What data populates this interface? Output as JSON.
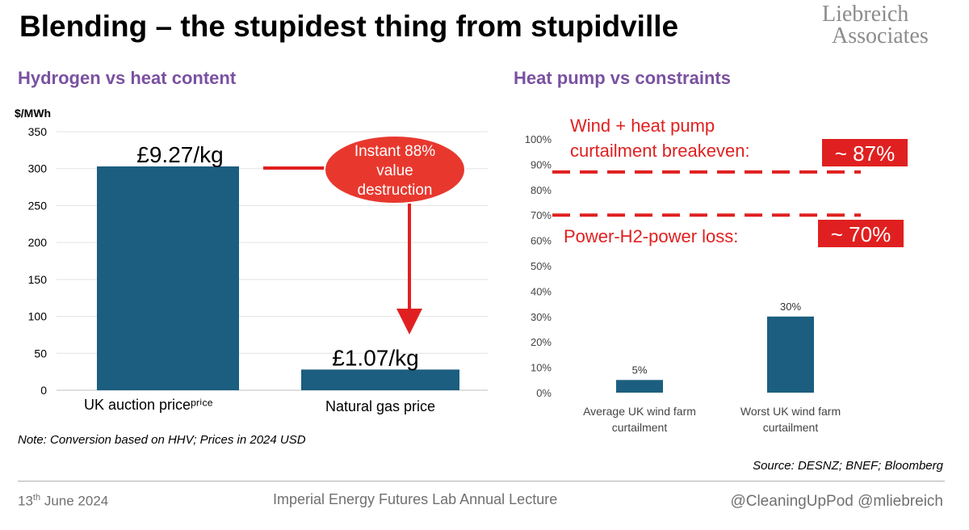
{
  "title": "Blending – the stupidest thing from stupidville",
  "logo": {
    "line1": "Liebreich",
    "line2": "Associates"
  },
  "left_subtitle": "Hydrogen vs heat content",
  "right_subtitle": "Heat pump vs constraints",
  "colors": {
    "bar": "#1b5e80",
    "accent_red": "#e02020",
    "subtitle_purple": "#7a51a1",
    "callout_fill": "#e8382e"
  },
  "chart_data": [
    {
      "type": "bar",
      "ylabel": "$/MWh",
      "ylim": [
        0,
        350
      ],
      "yticks": [
        "0",
        "50",
        "100",
        "150",
        "200",
        "250",
        "300",
        "350"
      ],
      "categories": [
        "UK auction price",
        "Natural gas price"
      ],
      "category_labels": [
        "UK auction priceᵖʳⁱᶜᵉ",
        "Natural gas price"
      ],
      "values": [
        303,
        28
      ],
      "data_labels": [
        "£9.27/kg",
        "£1.07/kg"
      ],
      "grid": true,
      "annotation": {
        "lines": [
          "Instant 88%",
          "value",
          "destruction"
        ]
      }
    },
    {
      "type": "bar",
      "ylim": [
        0,
        100
      ],
      "yticks": [
        "0%",
        "10%",
        "20%",
        "30%",
        "40%",
        "50%",
        "60%",
        "70%",
        "80%",
        "90%",
        "100%"
      ],
      "categories": [
        "Average UK wind farm curtailment",
        "Worst UK wind farm curtailment"
      ],
      "category_lines": [
        [
          "Average UK wind farm",
          "curtailment"
        ],
        [
          "Worst UK wind farm",
          "curtailment"
        ]
      ],
      "values": [
        5,
        30
      ],
      "data_labels": [
        "5%",
        "30%"
      ],
      "grid": false,
      "thresholds": [
        {
          "value": 87,
          "label_lines": [
            "Wind + heat pump",
            "curtailment breakeven:"
          ],
          "badge": "~ 87%"
        },
        {
          "value": 70,
          "label_lines": [
            "Power-H2-power loss:"
          ],
          "badge": "~ 70%"
        }
      ]
    }
  ],
  "note": "Note: Conversion based on HHV; Prices in 2024 USD",
  "source": "Source: DESNZ; BNEF; Bloomberg",
  "footer": {
    "date_day": "13",
    "date_suffix": "th",
    "date_rest": " June 2024",
    "lecture": "Imperial Energy Futures Lab Annual Lecture",
    "handles": "@CleaningUpPod @mliebreich"
  }
}
